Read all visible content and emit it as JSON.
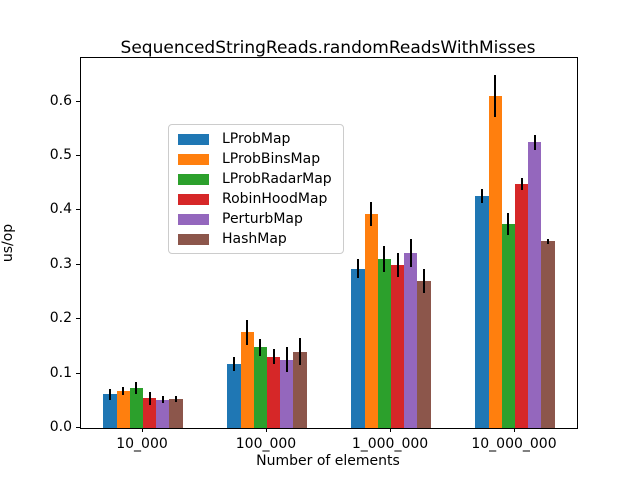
{
  "chart_data": {
    "type": "bar",
    "title": "SequencedStringReads.randomReadsWithMisses",
    "xlabel": "Number of elements",
    "ylabel": "us/op",
    "categories": [
      "10_000",
      "100_000",
      "1_000_000",
      "10_000_000"
    ],
    "series": [
      {
        "name": "LProbMap",
        "color": "#1f77b4",
        "values": [
          0.062,
          0.117,
          0.293,
          0.426
        ],
        "errors": [
          0.01,
          0.013,
          0.017,
          0.013
        ]
      },
      {
        "name": "LProbBinsMap",
        "color": "#ff7f0e",
        "values": [
          0.068,
          0.176,
          0.394,
          0.61
        ],
        "errors": [
          0.008,
          0.023,
          0.022,
          0.039
        ]
      },
      {
        "name": "LProbRadarMap",
        "color": "#2ca02c",
        "values": [
          0.073,
          0.148,
          0.31,
          0.375
        ],
        "errors": [
          0.011,
          0.016,
          0.024,
          0.021
        ]
      },
      {
        "name": "RobinHoodMap",
        "color": "#d62728",
        "values": [
          0.055,
          0.131,
          0.3,
          0.449
        ],
        "errors": [
          0.012,
          0.014,
          0.022,
          0.011
        ]
      },
      {
        "name": "PerturbMap",
        "color": "#9467bd",
        "values": [
          0.052,
          0.125,
          0.322,
          0.525
        ],
        "errors": [
          0.006,
          0.023,
          0.026,
          0.014
        ]
      },
      {
        "name": "HashMap",
        "color": "#8c564b",
        "values": [
          0.053,
          0.14,
          0.27,
          0.343
        ],
        "errors": [
          0.006,
          0.025,
          0.022,
          0.005
        ]
      }
    ],
    "ylim": [
      0,
      0.68
    ],
    "yticks": [
      "0.0",
      "0.1",
      "0.2",
      "0.3",
      "0.4",
      "0.5",
      "0.6"
    ],
    "grid": false,
    "legend_position": "upper left",
    "error_bars": true,
    "error_bar_color": "#000000"
  }
}
